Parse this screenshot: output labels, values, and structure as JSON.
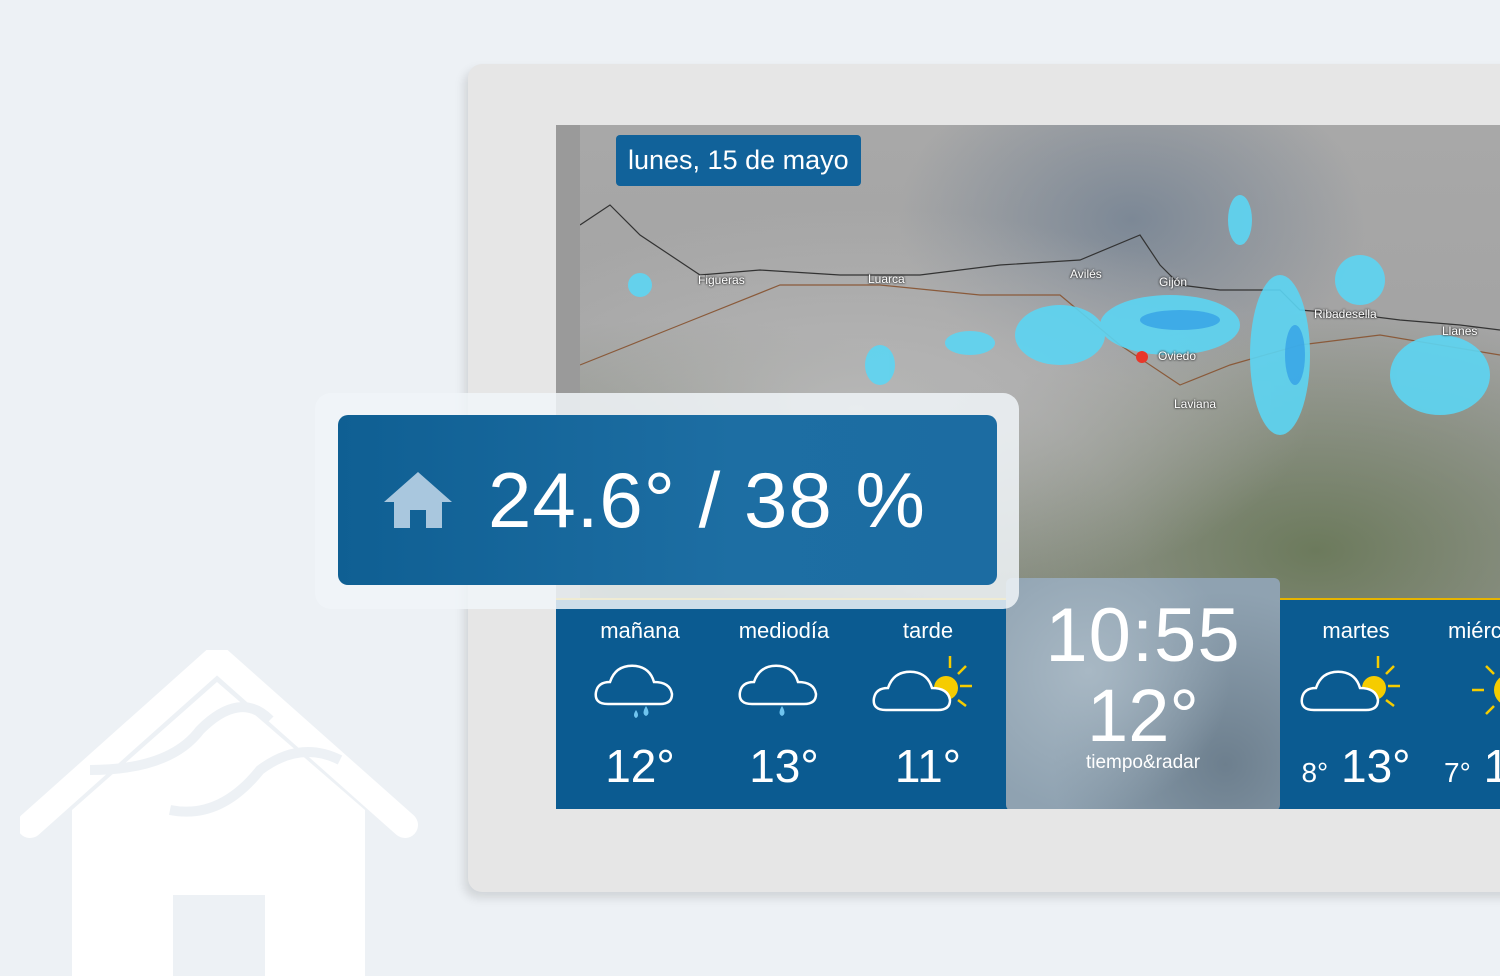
{
  "date_label": "lunes, 15 de mayo",
  "map": {
    "cities": [
      "Figueras",
      "Luarca",
      "Avilés",
      "Gijón",
      "Ribadesella",
      "Oviedo",
      "Laviana",
      "Llanes"
    ],
    "marker_city": "Oviedo",
    "marker_color": "#e8372a"
  },
  "indoor": {
    "icon": "home-icon",
    "reading": "24.6° / 38 %"
  },
  "today": [
    {
      "label": "mañana",
      "icon": "cloud-rain-icon",
      "temp": "12°"
    },
    {
      "label": "mediodía",
      "icon": "cloud-drizzle-icon",
      "temp": "13°"
    },
    {
      "label": "tarde",
      "icon": "cloud-sun-icon",
      "temp": "11°"
    }
  ],
  "clock": {
    "time": "10:55",
    "temp": "12°",
    "brand": "tiempo&radar"
  },
  "forecast": [
    {
      "label": "martes",
      "icon": "cloud-sun-icon",
      "min": "8°",
      "max": "13°"
    },
    {
      "label": "miérc",
      "icon": "sun-icon",
      "min": "7°",
      "max": "1"
    }
  ],
  "colors": {
    "panel": "#0b5b91",
    "sun": "#f5cc00",
    "accent_line": "#e6b400"
  }
}
